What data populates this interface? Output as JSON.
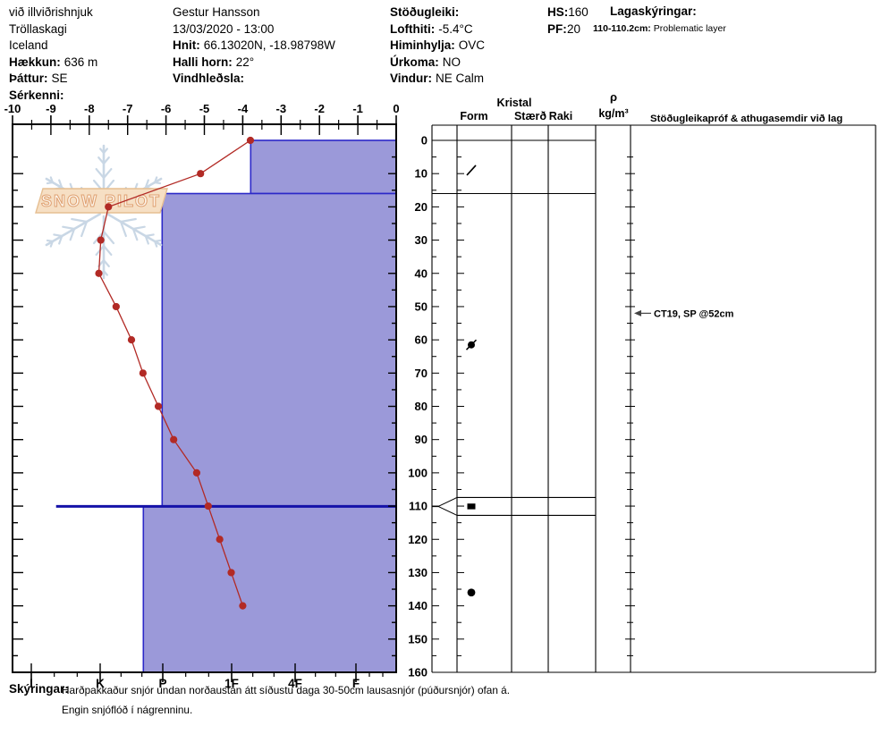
{
  "header": {
    "site": {
      "name": "við illviðrishnjuk",
      "region": "Tröllaskagi",
      "country": "Iceland",
      "elevation_label": "Hækkun:",
      "elevation": "636 m",
      "aspect_label": "Þáttur:",
      "aspect": "SE",
      "special_label": "Sérkenni:",
      "special": ""
    },
    "observer": {
      "name": "Gestur Hansson",
      "datetime": "13/03/2020 - 13:00",
      "coords_label": "Hnit:",
      "coords": "66.13020N, -18.98798W",
      "slope_label": "Halli horn:",
      "slope": "22°",
      "windloading_label": "Vindhleðsla:",
      "windloading": ""
    },
    "conditions": {
      "stability_label": "Stöðugleiki:",
      "stability": "",
      "airtemp_label": "Lofthiti:",
      "airtemp": "-5.4°C",
      "sky_label": "Himinhylja:",
      "sky": "OVC",
      "precip_label": "Úrkoma:",
      "precip": "NO",
      "wind_label": "Vindur:",
      "wind": "NE Calm"
    },
    "totals": {
      "hs_label": "HS:",
      "hs": "160",
      "pf_label": "PF:",
      "pf": "20"
    },
    "layer_notes": {
      "label": "Lagaskýringar:",
      "entry_range": "110-110.2cm:",
      "entry_text": "Problematic layer"
    }
  },
  "watermark": {
    "text": "SNOW PILOT"
  },
  "table_headers": {
    "kristal": "Kristal",
    "form": "Form",
    "size": "Stærð",
    "wetness": "Raki",
    "density_symbol": "ρ",
    "density_unit": "kg/m³",
    "stability": "Stöðugleikapróf & athugasemdir við lag"
  },
  "chart_data": {
    "type": "area",
    "description": "Snow profile: hardness layers (horizontal bars), snow temperature curve (red), grain form symbols, depth in cm",
    "temperature_axis": {
      "min": -10,
      "max": 0,
      "unit": "°C",
      "ticks": [
        -10,
        -9,
        -8,
        -7,
        -6,
        -5,
        -4,
        -3,
        -2,
        -1,
        0
      ]
    },
    "depth_axis": {
      "min": 0,
      "max": 160,
      "unit": "cm",
      "ticks": [
        0,
        10,
        20,
        30,
        40,
        50,
        60,
        70,
        80,
        90,
        100,
        110,
        120,
        130,
        140,
        150,
        160
      ]
    },
    "hardness_axis": {
      "categories": [
        "I",
        "K",
        "P",
        "1F",
        "4F",
        "F"
      ]
    },
    "temperature_series": {
      "unit": "°C",
      "points": [
        {
          "depth": 0,
          "temp": -3.8
        },
        {
          "depth": 10,
          "temp": -5.1
        },
        {
          "depth": 20,
          "temp": -7.5
        },
        {
          "depth": 30,
          "temp": -7.7
        },
        {
          "depth": 40,
          "temp": -7.75
        },
        {
          "depth": 50,
          "temp": -7.3
        },
        {
          "depth": 60,
          "temp": -6.9
        },
        {
          "depth": 70,
          "temp": -6.6
        },
        {
          "depth": 80,
          "temp": -6.2
        },
        {
          "depth": 90,
          "temp": -5.8
        },
        {
          "depth": 100,
          "temp": -5.2
        },
        {
          "depth": 110,
          "temp": -4.9
        },
        {
          "depth": 120,
          "temp": -4.6
        },
        {
          "depth": 130,
          "temp": -4.3
        },
        {
          "depth": 140,
          "temp": -4.0
        }
      ]
    },
    "layers": [
      {
        "top_cm": 0,
        "bottom_cm": 16,
        "hardness": "1F-4F",
        "hardness_pos": 3.3
      },
      {
        "top_cm": 16,
        "bottom_cm": 110,
        "hardness": "P",
        "hardness_pos": 1.99
      },
      {
        "top_cm": 110.2,
        "bottom_cm": 160,
        "hardness": "P-K",
        "hardness_pos": 1.69
      }
    ],
    "problem_layer": {
      "top_cm": 110,
      "bottom_cm": 110.2,
      "hardness_pos": 0.36
    },
    "grain_forms": [
      {
        "depth": 9,
        "glyph": "slash"
      },
      {
        "depth": 61.5,
        "glyph": "dot-slash"
      },
      {
        "depth": 110,
        "glyph": "square"
      },
      {
        "depth": 136,
        "glyph": "dot"
      }
    ],
    "annotations": {
      "stability_test": {
        "text": "CT19, SP @52cm",
        "depth_cm": 52
      }
    },
    "colors": {
      "bar_fill": "#9b99d9",
      "bar_border": "#2b28c8",
      "problem_line": "#1512a8",
      "temp_line": "#b22a25",
      "snowflake": "#c9d7e5",
      "banner_fill": "#f6dfc4",
      "banner_border": "#e6bf92",
      "banner_text_stroke": "#dfa071",
      "banner_text_fill": "#fdf6ec"
    }
  },
  "footer": {
    "label": "Skýringar:",
    "line1": "Harðpakkaður snjór undan norðaustan átt síðustu daga 30-50cm lausasnjór (púðursnjór) ofan á.",
    "line2": "Engin snjóflóð í nágrenninu."
  }
}
